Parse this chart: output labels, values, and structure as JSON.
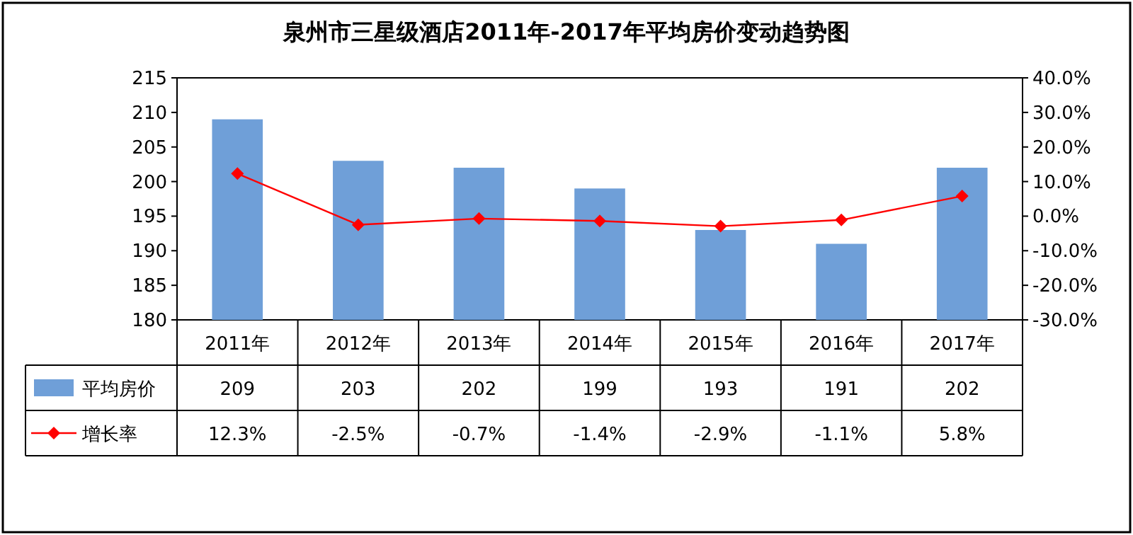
{
  "chart_data": {
    "type": "bar",
    "title": "泉州市三星级酒店2011年-2017年平均房价变动趋势图",
    "categories": [
      "2011年",
      "2012年",
      "2013年",
      "2014年",
      "2015年",
      "2016年",
      "2017年"
    ],
    "series": [
      {
        "name": "平均房价",
        "color": "#6f9fd8",
        "values": [
          209,
          203,
          202,
          199,
          193,
          191,
          202
        ],
        "value_labels": [
          "209",
          "203",
          "202",
          "199",
          "193",
          "191",
          "202"
        ]
      },
      {
        "name": "增长率",
        "type": "line",
        "axis": "y2",
        "color": "#ff0000",
        "values": [
          12.3,
          -2.5,
          -0.7,
          -1.4,
          -2.9,
          -1.1,
          5.8
        ],
        "value_labels": [
          "12.3%",
          "-2.5%",
          "-0.7%",
          "-1.4%",
          "-2.9%",
          "-1.1%",
          "5.8%"
        ]
      }
    ],
    "ylim": [
      180,
      215
    ],
    "yticks": [
      180,
      185,
      190,
      195,
      200,
      205,
      210,
      215
    ],
    "y2lim": [
      -30,
      40
    ],
    "y2ticks": [
      {
        "value": -30,
        "label": "-30.0%"
      },
      {
        "value": -20,
        "label": "-20.0%"
      },
      {
        "value": -10,
        "label": "-10.0%"
      },
      {
        "value": 0,
        "label": "0.0%"
      },
      {
        "value": 10,
        "label": "10.0%"
      },
      {
        "value": 20,
        "label": "20.0%"
      },
      {
        "value": 30,
        "label": "30.0%"
      },
      {
        "value": 40,
        "label": "40.0%"
      }
    ],
    "legend": "bottom",
    "marker": "diamond",
    "grid": false
  }
}
